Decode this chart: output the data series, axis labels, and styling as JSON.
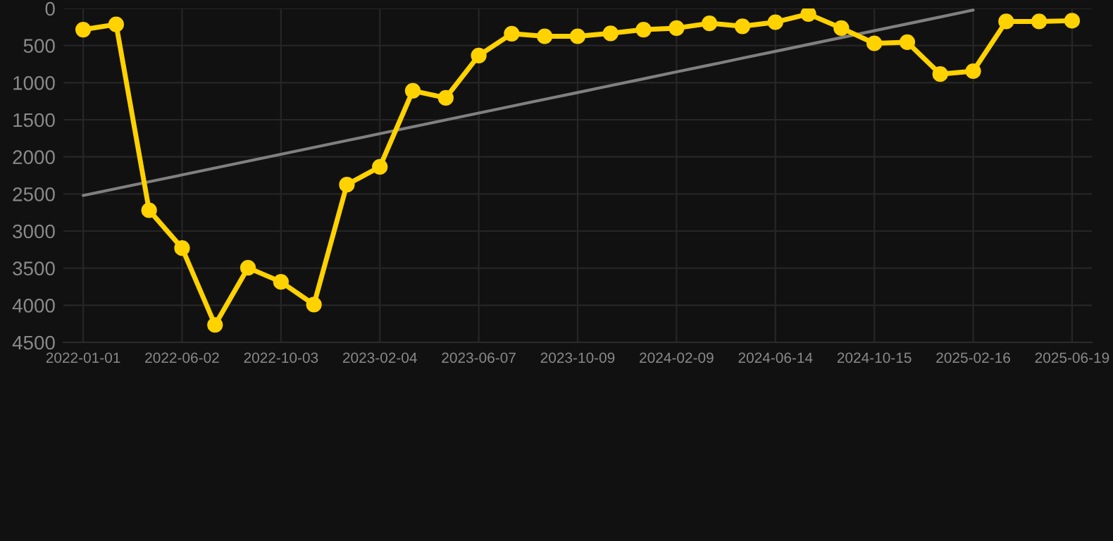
{
  "chart_data": {
    "type": "line",
    "categories": [
      "2022-01-01",
      null,
      null,
      "2022-06-02",
      null,
      null,
      "2022-10-03",
      null,
      null,
      "2023-02-04",
      null,
      null,
      "2023-06-07",
      null,
      null,
      "2023-10-09",
      null,
      null,
      "2024-02-09",
      null,
      null,
      "2024-06-14",
      null,
      null,
      "2024-10-15",
      null,
      null,
      "2025-02-16",
      null,
      null,
      "2025-06-19"
    ],
    "series": [
      {
        "color": "#ffd200",
        "marker": "circle",
        "values": [
          285,
          215,
          2720,
          3230,
          4265,
          3495,
          3685,
          3990,
          2375,
          2135,
          1110,
          1205,
          635,
          340,
          375,
          375,
          335,
          285,
          265,
          200,
          240,
          185,
          75,
          265,
          470,
          455,
          885,
          845,
          175,
          175,
          165
        ]
      },
      {
        "color": "#808080",
        "marker": "none",
        "values": [
          2520,
          2428,
          2335,
          2243,
          2150,
          2058,
          1965,
          1873,
          1780,
          1688,
          1595,
          1503,
          1410,
          1318,
          1225,
          1133,
          1040,
          948,
          855,
          763,
          670,
          578,
          485,
          393,
          300,
          208,
          115,
          22,
          null,
          null,
          null
        ]
      }
    ],
    "ylim": [
      4500,
      0
    ],
    "yticks": [
      0,
      500,
      1000,
      1500,
      2000,
      2500,
      3000,
      3500,
      4000,
      4500
    ],
    "grid": true,
    "legend": false
  }
}
